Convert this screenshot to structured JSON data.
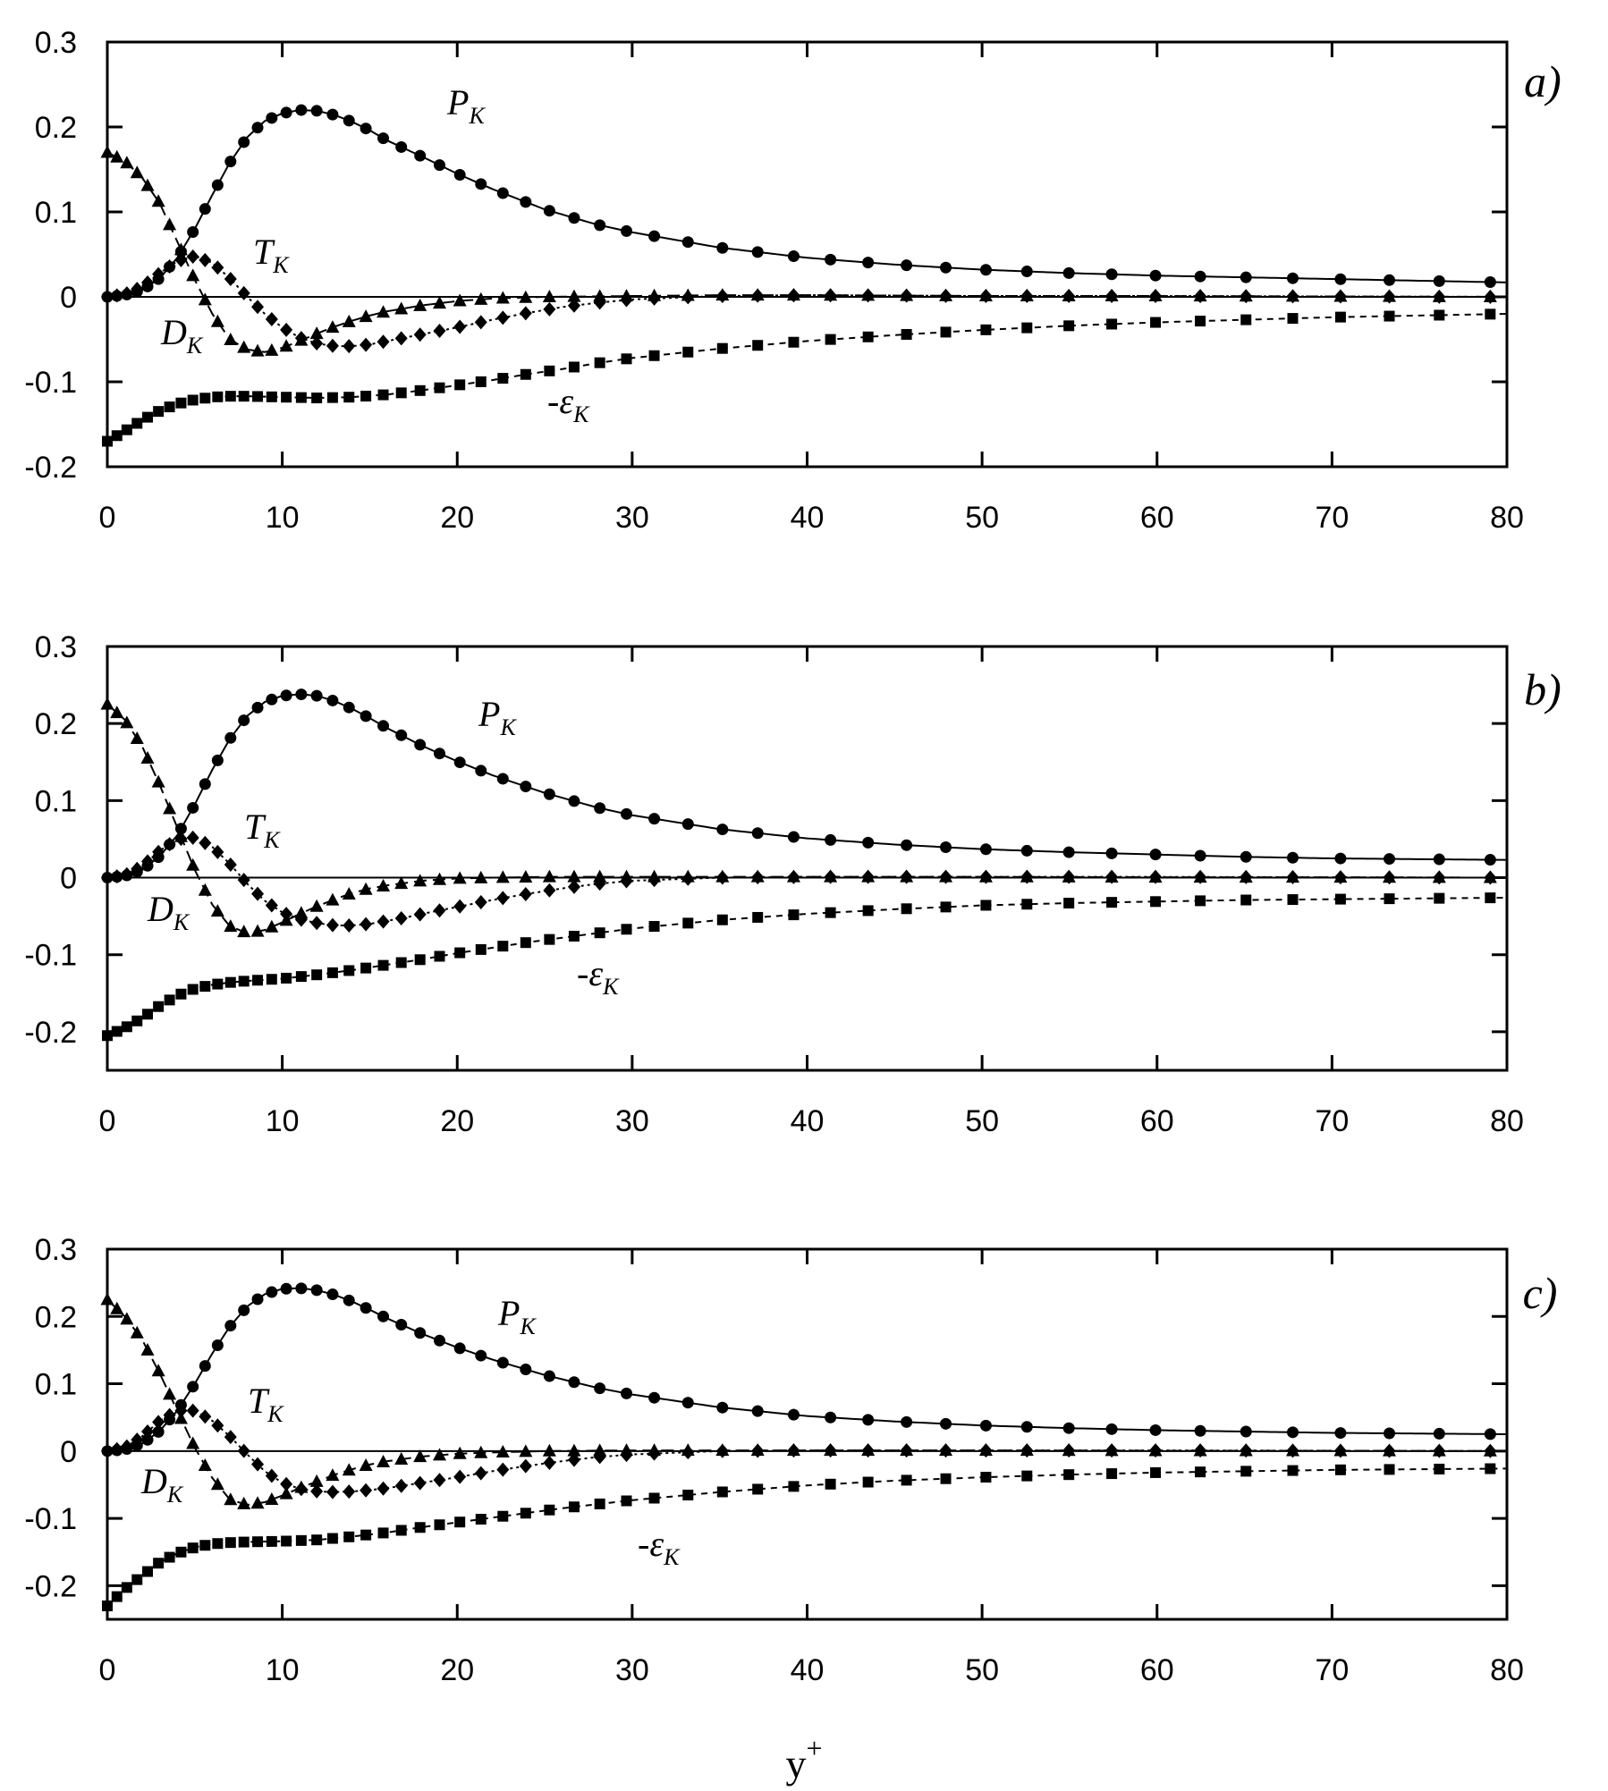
{
  "chart_data": [
    {
      "type": "line",
      "panel_label": "a)",
      "xlim": [
        0,
        80
      ],
      "ylim": [
        -0.2,
        0.3
      ],
      "x_ticks": [
        "0",
        "10",
        "20",
        "30",
        "40",
        "50",
        "60",
        "70",
        "80"
      ],
      "y_ticks": [
        "-0.2",
        "-0.1",
        "0",
        "0.1",
        "0.2",
        "0.3"
      ],
      "series": [
        {
          "name": "P_K",
          "label_main": "P",
          "label_sub": "K",
          "marker": "circle",
          "line": "solid",
          "x": [
            0,
            1,
            2,
            3,
            4,
            5,
            6,
            7,
            8,
            9,
            10,
            11,
            12,
            13,
            14,
            15,
            16,
            18,
            20,
            22,
            25,
            28,
            30,
            35,
            40,
            45,
            50,
            55,
            60,
            65,
            70,
            75,
            80
          ],
          "y": [
            0,
            0.002,
            0.008,
            0.022,
            0.046,
            0.08,
            0.12,
            0.158,
            0.188,
            0.207,
            0.216,
            0.22,
            0.219,
            0.214,
            0.206,
            0.196,
            0.184,
            0.165,
            0.145,
            0.127,
            0.103,
            0.085,
            0.076,
            0.058,
            0.046,
            0.038,
            0.032,
            0.028,
            0.025,
            0.023,
            0.021,
            0.019,
            0.017
          ]
        },
        {
          "name": "D_K",
          "label_main": "D",
          "label_sub": "K",
          "marker": "triangle",
          "line": "longdash",
          "x": [
            0,
            1,
            2,
            3,
            4,
            5,
            6,
            7,
            8,
            9,
            10,
            11,
            12,
            13,
            14,
            15,
            16,
            18,
            20,
            22,
            25,
            30,
            35,
            40,
            50,
            60,
            70,
            80
          ],
          "y": [
            0.17,
            0.16,
            0.14,
            0.11,
            0.065,
            0.02,
            -0.02,
            -0.05,
            -0.062,
            -0.065,
            -0.06,
            -0.052,
            -0.043,
            -0.035,
            -0.028,
            -0.022,
            -0.017,
            -0.01,
            -0.005,
            -0.002,
            0,
            0.001,
            0.002,
            0.002,
            0.001,
            0.001,
            0.0005,
            0
          ]
        },
        {
          "name": "T_K",
          "label_main": "T",
          "label_sub": "K",
          "marker": "diamond",
          "line": "dotted",
          "x": [
            0,
            1,
            2,
            3,
            4,
            5,
            6,
            7,
            8,
            9,
            10,
            11,
            12,
            13,
            14,
            15,
            16,
            17,
            18,
            20,
            22,
            24,
            26,
            28,
            30,
            35,
            40,
            50,
            60,
            70,
            80
          ],
          "y": [
            0,
            0.003,
            0.012,
            0.028,
            0.042,
            0.048,
            0.04,
            0.022,
            0,
            -0.02,
            -0.036,
            -0.048,
            -0.055,
            -0.058,
            -0.058,
            -0.056,
            -0.052,
            -0.048,
            -0.044,
            -0.036,
            -0.027,
            -0.019,
            -0.012,
            -0.007,
            -0.003,
            0.001,
            0.002,
            0.001,
            0.001,
            0.0005,
            0
          ]
        },
        {
          "name": "-ε_K",
          "label_main": "-ε",
          "label_sub": "K",
          "marker": "square",
          "line": "shortdash",
          "x": [
            0,
            1,
            2,
            3,
            4,
            5,
            6,
            7,
            8,
            10,
            12,
            14,
            16,
            18,
            20,
            22,
            24,
            26,
            28,
            30,
            35,
            40,
            45,
            50,
            55,
            60,
            65,
            70,
            75,
            80
          ],
          "y": [
            -0.17,
            -0.158,
            -0.145,
            -0.134,
            -0.126,
            -0.121,
            -0.118,
            -0.117,
            -0.117,
            -0.118,
            -0.119,
            -0.118,
            -0.115,
            -0.11,
            -0.104,
            -0.098,
            -0.091,
            -0.085,
            -0.078,
            -0.072,
            -0.061,
            -0.052,
            -0.045,
            -0.039,
            -0.034,
            -0.03,
            -0.027,
            -0.024,
            -0.022,
            -0.02
          ]
        }
      ]
    },
    {
      "type": "line",
      "panel_label": "b)",
      "xlim": [
        0,
        80
      ],
      "ylim": [
        -0.25,
        0.3
      ],
      "x_ticks": [
        "0",
        "10",
        "20",
        "30",
        "40",
        "50",
        "60",
        "70",
        "80"
      ],
      "y_ticks": [
        "-0.2",
        "-0.1",
        "0",
        "0.1",
        "0.2",
        "0.3"
      ],
      "series": [
        {
          "name": "P_K",
          "label_main": "P",
          "label_sub": "K",
          "marker": "circle",
          "line": "solid",
          "x": [
            0,
            1,
            2,
            3,
            4,
            5,
            6,
            7,
            8,
            9,
            10,
            11,
            12,
            13,
            14,
            15,
            16,
            18,
            20,
            22,
            25,
            28,
            30,
            35,
            40,
            45,
            50,
            55,
            60,
            65,
            70,
            75,
            80
          ],
          "y": [
            0,
            0.002,
            0.01,
            0.028,
            0.055,
            0.095,
            0.14,
            0.18,
            0.21,
            0.228,
            0.236,
            0.238,
            0.236,
            0.229,
            0.219,
            0.207,
            0.194,
            0.171,
            0.151,
            0.133,
            0.11,
            0.091,
            0.081,
            0.063,
            0.051,
            0.043,
            0.037,
            0.033,
            0.03,
            0.027,
            0.025,
            0.024,
            0.023
          ]
        },
        {
          "name": "D_K",
          "label_main": "D",
          "label_sub": "K",
          "marker": "triangle",
          "line": "longdash",
          "x": [
            0,
            1,
            2,
            3,
            4,
            5,
            6,
            7,
            8,
            9,
            10,
            11,
            12,
            13,
            14,
            15,
            16,
            18,
            20,
            22,
            25,
            30,
            35,
            40,
            50,
            60,
            70,
            80
          ],
          "y": [
            0.225,
            0.205,
            0.17,
            0.12,
            0.065,
            0.01,
            -0.035,
            -0.063,
            -0.072,
            -0.068,
            -0.058,
            -0.047,
            -0.037,
            -0.028,
            -0.02,
            -0.014,
            -0.01,
            -0.004,
            -0.001,
            0,
            0.001,
            0.001,
            0.001,
            0.001,
            0.001,
            0.0005,
            0.0005,
            0
          ]
        },
        {
          "name": "T_K",
          "label_main": "T",
          "label_sub": "K",
          "marker": "diamond",
          "line": "dotted",
          "x": [
            0,
            1,
            2,
            3,
            4,
            5,
            6,
            7,
            8,
            9,
            10,
            11,
            12,
            13,
            14,
            15,
            16,
            17,
            18,
            20,
            22,
            24,
            26,
            28,
            30,
            35,
            40,
            50,
            60,
            70,
            80
          ],
          "y": [
            0,
            0.003,
            0.015,
            0.035,
            0.05,
            0.052,
            0.04,
            0.018,
            -0.008,
            -0.03,
            -0.045,
            -0.054,
            -0.059,
            -0.062,
            -0.062,
            -0.06,
            -0.056,
            -0.052,
            -0.047,
            -0.038,
            -0.029,
            -0.021,
            -0.014,
            -0.008,
            -0.004,
            0,
            0.001,
            0.001,
            0.001,
            0.0005,
            0
          ]
        },
        {
          "name": "-ε_K",
          "label_main": "-ε",
          "label_sub": "K",
          "marker": "square",
          "line": "shortdash",
          "x": [
            0,
            1,
            2,
            3,
            4,
            5,
            6,
            7,
            8,
            10,
            12,
            14,
            16,
            18,
            20,
            22,
            24,
            26,
            28,
            30,
            35,
            40,
            45,
            50,
            55,
            60,
            65,
            70,
            75,
            80
          ],
          "y": [
            -0.205,
            -0.195,
            -0.182,
            -0.166,
            -0.153,
            -0.144,
            -0.139,
            -0.136,
            -0.134,
            -0.131,
            -0.126,
            -0.12,
            -0.113,
            -0.106,
            -0.098,
            -0.091,
            -0.084,
            -0.078,
            -0.072,
            -0.066,
            -0.055,
            -0.047,
            -0.041,
            -0.036,
            -0.033,
            -0.031,
            -0.029,
            -0.028,
            -0.027,
            -0.026
          ]
        }
      ]
    },
    {
      "type": "line",
      "panel_label": "c)",
      "xlim": [
        0,
        80
      ],
      "ylim": [
        -0.25,
        0.3
      ],
      "x_ticks": [
        "0",
        "10",
        "20",
        "30",
        "40",
        "50",
        "60",
        "70",
        "80"
      ],
      "y_ticks": [
        "-0.2",
        "-0.1",
        "0",
        "0.1",
        "0.2",
        "0.3"
      ],
      "series": [
        {
          "name": "P_K",
          "label_main": "P",
          "label_sub": "K",
          "marker": "circle",
          "line": "solid",
          "x": [
            0,
            1,
            2,
            3,
            4,
            5,
            6,
            7,
            8,
            9,
            10,
            11,
            12,
            13,
            14,
            15,
            16,
            18,
            20,
            22,
            25,
            28,
            30,
            35,
            40,
            45,
            50,
            55,
            60,
            65,
            70,
            75,
            80
          ],
          "y": [
            0,
            0.002,
            0.011,
            0.03,
            0.06,
            0.1,
            0.145,
            0.185,
            0.215,
            0.233,
            0.241,
            0.242,
            0.239,
            0.232,
            0.222,
            0.21,
            0.197,
            0.174,
            0.154,
            0.136,
            0.113,
            0.094,
            0.084,
            0.065,
            0.052,
            0.044,
            0.038,
            0.034,
            0.031,
            0.029,
            0.027,
            0.026,
            0.025
          ]
        },
        {
          "name": "D_K",
          "label_main": "D",
          "label_sub": "K",
          "marker": "triangle",
          "line": "longdash",
          "x": [
            0,
            1,
            2,
            3,
            4,
            5,
            6,
            7,
            8,
            9,
            10,
            11,
            12,
            13,
            14,
            15,
            16,
            18,
            20,
            22,
            25,
            30,
            35,
            40,
            50,
            60,
            70,
            80
          ],
          "y": [
            0.225,
            0.2,
            0.165,
            0.115,
            0.06,
            0.005,
            -0.04,
            -0.072,
            -0.08,
            -0.076,
            -0.066,
            -0.055,
            -0.045,
            -0.035,
            -0.027,
            -0.02,
            -0.015,
            -0.008,
            -0.004,
            -0.002,
            0,
            0.001,
            0.001,
            0.001,
            0.001,
            0.0005,
            0.0005,
            0
          ]
        },
        {
          "name": "T_K",
          "label_main": "T",
          "label_sub": "K",
          "marker": "diamond",
          "line": "dotted",
          "x": [
            0,
            1,
            2,
            3,
            4,
            5,
            6,
            7,
            8,
            9,
            10,
            11,
            12,
            13,
            14,
            15,
            16,
            17,
            18,
            20,
            22,
            24,
            26,
            28,
            30,
            35,
            40,
            50,
            60,
            70,
            80
          ],
          "y": [
            0,
            0.005,
            0.022,
            0.045,
            0.06,
            0.06,
            0.045,
            0.022,
            -0.005,
            -0.03,
            -0.047,
            -0.056,
            -0.06,
            -0.061,
            -0.06,
            -0.058,
            -0.055,
            -0.051,
            -0.047,
            -0.039,
            -0.03,
            -0.022,
            -0.015,
            -0.009,
            -0.005,
            0,
            0.001,
            0.001,
            0.001,
            0.0005,
            0
          ]
        },
        {
          "name": "-ε_K",
          "label_main": "-ε",
          "label_sub": "K",
          "marker": "square",
          "line": "shortdash",
          "x": [
            0,
            1,
            2,
            3,
            4,
            5,
            6,
            7,
            8,
            10,
            12,
            14,
            16,
            18,
            20,
            22,
            24,
            26,
            28,
            30,
            35,
            40,
            45,
            50,
            55,
            60,
            65,
            70,
            75,
            80
          ],
          "y": [
            -0.23,
            -0.205,
            -0.185,
            -0.165,
            -0.152,
            -0.143,
            -0.138,
            -0.136,
            -0.135,
            -0.134,
            -0.132,
            -0.127,
            -0.121,
            -0.113,
            -0.106,
            -0.099,
            -0.092,
            -0.085,
            -0.079,
            -0.073,
            -0.061,
            -0.051,
            -0.044,
            -0.039,
            -0.035,
            -0.032,
            -0.03,
            -0.028,
            -0.027,
            -0.026
          ]
        }
      ]
    }
  ],
  "xlabel": "y",
  "xlabel_sup": "+"
}
